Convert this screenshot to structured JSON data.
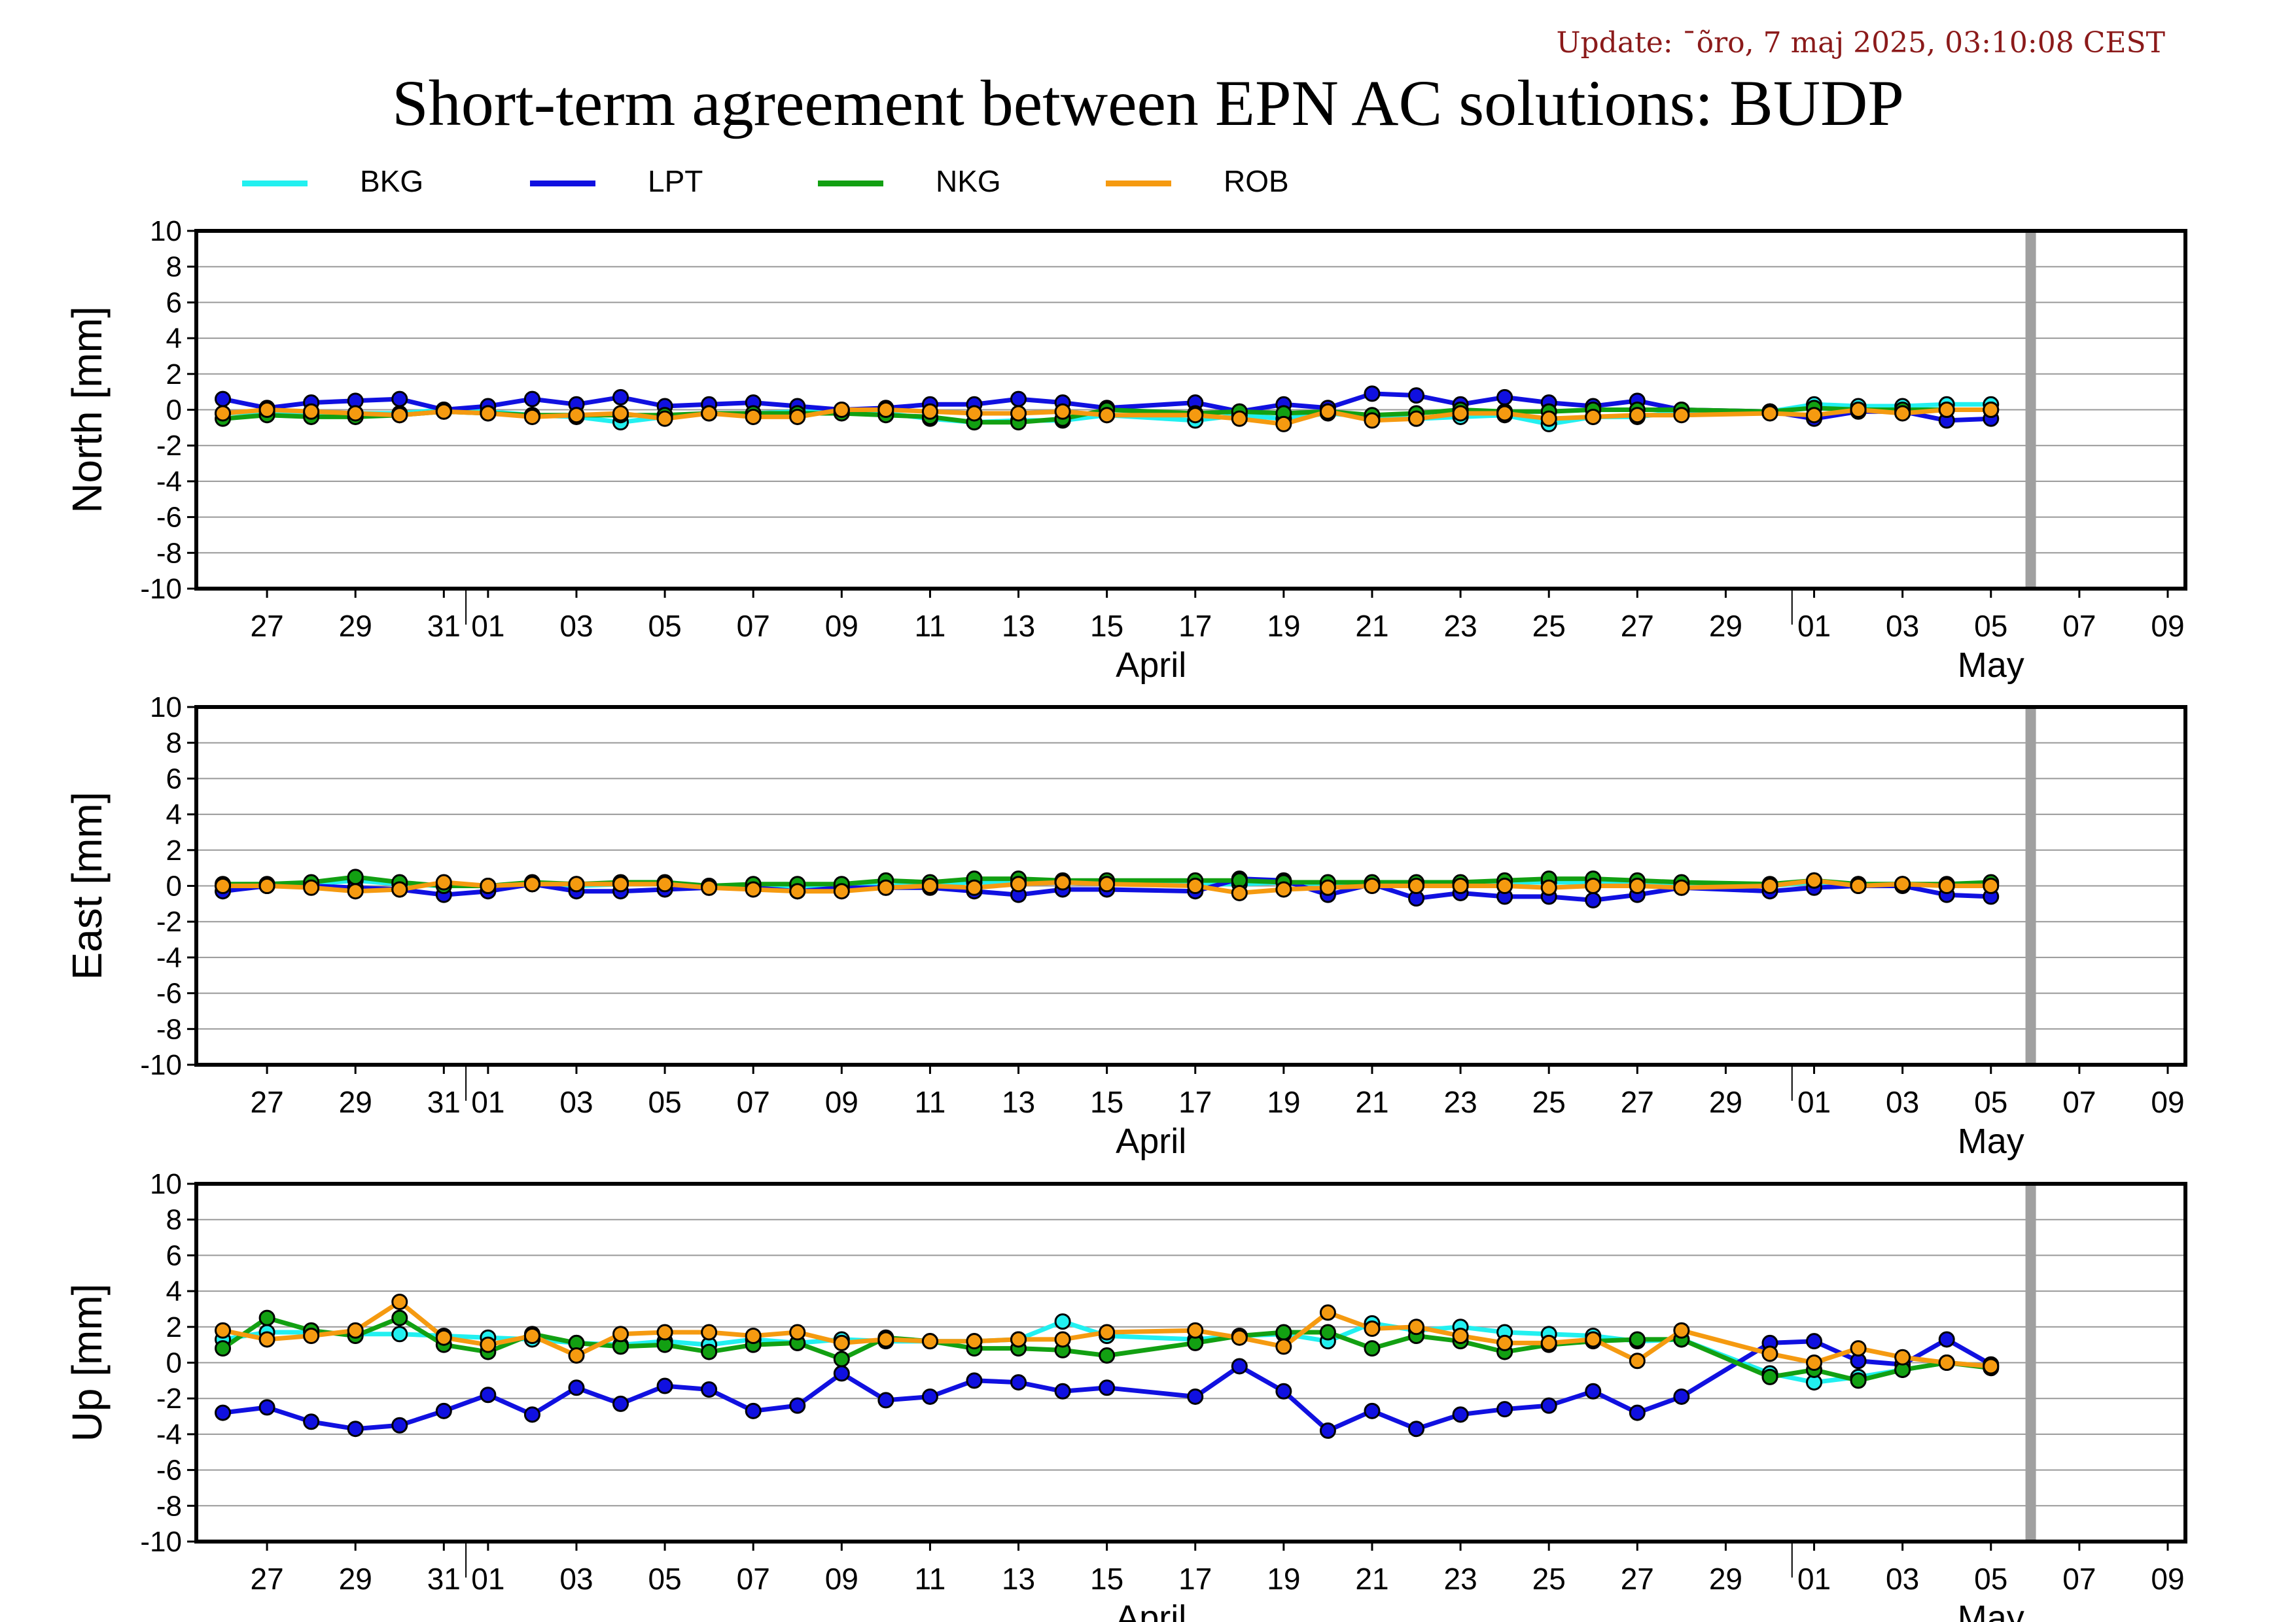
{
  "update_text": "Update: ¯õro, 7 maj 2025, 03:10:08 CEST",
  "title": "Short-term agreement between EPN AC solutions: BUDP",
  "legend": [
    {
      "name": "BKG",
      "color": "#22f0f0"
    },
    {
      "name": "LPT",
      "color": "#1010e0"
    },
    {
      "name": "NKG",
      "color": "#12a012"
    },
    {
      "name": "ROB",
      "color": "#f59a10"
    }
  ],
  "x_axis": {
    "tick_labels": [
      "27",
      "29",
      "31",
      "01",
      "03",
      "05",
      "07",
      "09",
      "11",
      "13",
      "15",
      "17",
      "19",
      "21",
      "23",
      "25",
      "27",
      "29",
      "01",
      "03",
      "05",
      "07",
      "09"
    ],
    "tick_days": [
      1,
      3,
      5,
      6,
      8,
      10,
      12,
      14,
      16,
      18,
      20,
      22,
      24,
      26,
      28,
      30,
      32,
      34,
      36,
      38,
      40,
      42,
      44
    ],
    "month_labels": [
      {
        "text": "April",
        "day": 21
      },
      {
        "text": "May",
        "day": 40
      }
    ],
    "month_separators": [
      5.5,
      35.5
    ],
    "range_days": [
      -0.6,
      44.4
    ],
    "current_day_marker": 40.9
  },
  "chart_data": [
    {
      "type": "line",
      "ylabel": "North [mm]",
      "ylim": [
        -10,
        10
      ],
      "yticks": [
        10,
        8,
        6,
        4,
        2,
        0,
        -2,
        -4,
        -6,
        -8,
        -10
      ],
      "grid": true,
      "series": [
        {
          "name": "BKG",
          "x": [
            0,
            1,
            2,
            3,
            4,
            5,
            6,
            7,
            8,
            9,
            10,
            11,
            12,
            13,
            14,
            15,
            16,
            17,
            18,
            19,
            20,
            22,
            23,
            24,
            25,
            26,
            27,
            28,
            29,
            30,
            31,
            32,
            33,
            35,
            36,
            37,
            38,
            39,
            40
          ],
          "y": [
            -0.2,
            -0.1,
            -0.2,
            -0.2,
            -0.2,
            0.0,
            -0.1,
            -0.3,
            -0.4,
            -0.7,
            -0.4,
            -0.2,
            -0.2,
            -0.1,
            -0.1,
            -0.2,
            -0.5,
            -0.7,
            -0.6,
            -0.6,
            -0.3,
            -0.6,
            -0.3,
            -0.5,
            -0.2,
            -0.4,
            -0.5,
            -0.4,
            -0.3,
            -0.8,
            -0.4,
            -0.4,
            -0.1,
            -0.1,
            0.3,
            0.2,
            0.2,
            0.3,
            0.3
          ]
        },
        {
          "name": "LPT",
          "x": [
            0,
            1,
            2,
            3,
            4,
            5,
            6,
            7,
            8,
            9,
            10,
            11,
            12,
            13,
            14,
            15,
            16,
            17,
            18,
            19,
            20,
            22,
            23,
            24,
            25,
            26,
            27,
            28,
            29,
            30,
            31,
            32,
            33,
            35,
            36,
            37,
            38,
            39,
            40
          ],
          "y": [
            0.6,
            0.1,
            0.4,
            0.5,
            0.6,
            0.0,
            0.2,
            0.6,
            0.3,
            0.7,
            0.2,
            0.3,
            0.4,
            0.2,
            0.0,
            0.1,
            0.3,
            0.3,
            0.6,
            0.4,
            0.1,
            0.4,
            -0.1,
            0.3,
            0.1,
            0.9,
            0.8,
            0.3,
            0.7,
            0.4,
            0.2,
            0.5,
            0.0,
            -0.1,
            -0.5,
            -0.1,
            -0.1,
            -0.6,
            -0.5
          ]
        },
        {
          "name": "NKG",
          "x": [
            0,
            1,
            2,
            3,
            4,
            5,
            6,
            7,
            8,
            9,
            10,
            11,
            12,
            13,
            14,
            15,
            16,
            17,
            18,
            19,
            20,
            22,
            23,
            24,
            25,
            26,
            27,
            28,
            29,
            30,
            31,
            32,
            33,
            35,
            36,
            37,
            38,
            39,
            40
          ],
          "y": [
            -0.5,
            -0.3,
            -0.4,
            -0.4,
            -0.3,
            -0.1,
            -0.2,
            -0.3,
            -0.3,
            -0.3,
            -0.3,
            -0.2,
            -0.2,
            -0.2,
            -0.2,
            -0.3,
            -0.4,
            -0.7,
            -0.7,
            -0.5,
            0.0,
            -0.2,
            -0.1,
            -0.2,
            -0.1,
            -0.3,
            -0.2,
            0.0,
            -0.1,
            -0.1,
            0.0,
            0.0,
            0.0,
            -0.1,
            0.1,
            0.0,
            0.0,
            0.0,
            0.0
          ]
        },
        {
          "name": "ROB",
          "x": [
            0,
            1,
            2,
            3,
            4,
            5,
            6,
            7,
            8,
            9,
            10,
            11,
            12,
            13,
            14,
            15,
            16,
            17,
            18,
            19,
            20,
            22,
            23,
            24,
            25,
            26,
            27,
            28,
            29,
            30,
            31,
            32,
            33,
            35,
            36,
            37,
            38,
            39,
            40
          ],
          "y": [
            -0.2,
            0.0,
            -0.1,
            -0.2,
            -0.3,
            -0.1,
            -0.2,
            -0.4,
            -0.3,
            -0.2,
            -0.5,
            -0.2,
            -0.4,
            -0.4,
            0.0,
            0.0,
            -0.1,
            -0.2,
            -0.2,
            -0.1,
            -0.3,
            -0.3,
            -0.5,
            -0.8,
            -0.1,
            -0.6,
            -0.5,
            -0.2,
            -0.2,
            -0.5,
            -0.4,
            -0.3,
            -0.3,
            -0.2,
            -0.3,
            0.0,
            -0.2,
            0.0,
            0.0
          ]
        }
      ]
    },
    {
      "type": "line",
      "ylabel": "East [mm]",
      "ylim": [
        -10,
        10
      ],
      "yticks": [
        10,
        8,
        6,
        4,
        2,
        0,
        -2,
        -4,
        -6,
        -8,
        -10
      ],
      "grid": true,
      "series": [
        {
          "name": "BKG",
          "x": [
            0,
            1,
            2,
            3,
            4,
            5,
            6,
            7,
            8,
            9,
            10,
            11,
            12,
            13,
            14,
            15,
            16,
            17,
            18,
            19,
            20,
            22,
            23,
            24,
            25,
            26,
            27,
            28,
            29,
            30,
            31,
            32,
            33,
            35,
            36,
            37,
            38,
            39,
            40
          ],
          "y": [
            0.0,
            0.0,
            0.1,
            0.3,
            0.1,
            0.0,
            0.0,
            0.1,
            0.0,
            0.1,
            0.1,
            0.0,
            0.0,
            0.0,
            0.0,
            0.0,
            0.1,
            0.2,
            0.2,
            0.2,
            0.2,
            0.1,
            0.1,
            0.2,
            0.1,
            0.1,
            0.1,
            0.1,
            0.2,
            0.2,
            0.2,
            0.1,
            0.1,
            0.0,
            0.2,
            0.1,
            0.1,
            0.0,
            0.1
          ]
        },
        {
          "name": "LPT",
          "x": [
            0,
            1,
            2,
            3,
            4,
            5,
            6,
            7,
            8,
            9,
            10,
            11,
            12,
            13,
            14,
            15,
            16,
            17,
            18,
            19,
            20,
            22,
            23,
            24,
            25,
            26,
            27,
            28,
            29,
            30,
            31,
            32,
            33,
            35,
            36,
            37,
            38,
            39,
            40
          ],
          "y": [
            -0.3,
            0.0,
            0.0,
            -0.1,
            -0.2,
            -0.5,
            -0.3,
            0.1,
            -0.3,
            -0.3,
            -0.2,
            -0.1,
            -0.1,
            -0.3,
            -0.1,
            -0.1,
            -0.1,
            -0.3,
            -0.5,
            -0.2,
            -0.2,
            -0.3,
            0.4,
            0.3,
            -0.5,
            0.1,
            -0.7,
            -0.4,
            -0.6,
            -0.6,
            -0.8,
            -0.5,
            -0.1,
            -0.3,
            -0.1,
            0.0,
            0.0,
            -0.5,
            -0.6
          ]
        },
        {
          "name": "NKG",
          "x": [
            0,
            1,
            2,
            3,
            4,
            5,
            6,
            7,
            8,
            9,
            10,
            11,
            12,
            13,
            14,
            15,
            16,
            17,
            18,
            19,
            20,
            22,
            23,
            24,
            25,
            26,
            27,
            28,
            29,
            30,
            31,
            32,
            33,
            35,
            36,
            37,
            38,
            39,
            40
          ],
          "y": [
            0.1,
            0.1,
            0.2,
            0.5,
            0.2,
            0.0,
            0.0,
            0.2,
            0.1,
            0.2,
            0.2,
            0.0,
            0.1,
            0.1,
            0.1,
            0.3,
            0.2,
            0.4,
            0.4,
            0.3,
            0.3,
            0.3,
            0.3,
            0.2,
            0.2,
            0.2,
            0.2,
            0.2,
            0.3,
            0.4,
            0.4,
            0.3,
            0.2,
            0.1,
            0.3,
            0.1,
            0.1,
            0.1,
            0.2
          ]
        },
        {
          "name": "ROB",
          "x": [
            0,
            1,
            2,
            3,
            4,
            5,
            6,
            7,
            8,
            9,
            10,
            11,
            12,
            13,
            14,
            15,
            16,
            17,
            18,
            19,
            20,
            22,
            23,
            24,
            25,
            26,
            27,
            28,
            29,
            30,
            31,
            32,
            33,
            35,
            36,
            37,
            38,
            39,
            40
          ],
          "y": [
            0.0,
            0.0,
            -0.1,
            -0.3,
            -0.2,
            0.2,
            0.0,
            0.1,
            0.1,
            0.1,
            0.1,
            -0.1,
            -0.2,
            -0.3,
            -0.3,
            -0.1,
            0.0,
            -0.1,
            0.1,
            0.2,
            0.1,
            0.0,
            -0.4,
            -0.2,
            -0.1,
            0.0,
            0.0,
            0.0,
            0.0,
            -0.1,
            0.0,
            0.0,
            -0.1,
            0.0,
            0.3,
            0.0,
            0.1,
            0.0,
            0.0
          ]
        }
      ]
    },
    {
      "type": "line",
      "ylabel": "Up [mm]",
      "ylim": [
        -10,
        10
      ],
      "yticks": [
        10,
        8,
        6,
        4,
        2,
        0,
        -2,
        -4,
        -6,
        -8,
        -10
      ],
      "grid": true,
      "series": [
        {
          "name": "BKG",
          "x": [
            0,
            1,
            2,
            3,
            4,
            5,
            6,
            7,
            8,
            9,
            10,
            11,
            12,
            13,
            14,
            15,
            16,
            17,
            18,
            19,
            20,
            22,
            23,
            24,
            25,
            26,
            27,
            28,
            29,
            30,
            31,
            32,
            33,
            35,
            36,
            37,
            38,
            39,
            40
          ],
          "y": [
            1.3,
            1.7,
            1.7,
            1.6,
            1.6,
            1.5,
            1.4,
            1.3,
            1.1,
            1.0,
            1.2,
            1.0,
            1.3,
            1.1,
            1.3,
            1.2,
            1.2,
            1.2,
            1.3,
            2.3,
            1.5,
            1.3,
            1.5,
            1.6,
            1.2,
            2.2,
            1.8,
            2.0,
            1.7,
            1.6,
            1.5,
            1.2,
            1.3,
            -0.6,
            -1.1,
            -0.8,
            -0.4,
            0.0,
            -0.2
          ]
        },
        {
          "name": "LPT",
          "x": [
            0,
            1,
            2,
            3,
            4,
            5,
            6,
            7,
            8,
            9,
            10,
            11,
            12,
            13,
            14,
            15,
            16,
            17,
            18,
            19,
            20,
            22,
            23,
            24,
            25,
            26,
            27,
            28,
            29,
            30,
            31,
            32,
            33,
            35,
            36,
            37,
            38,
            39,
            40
          ],
          "y": [
            -2.8,
            -2.5,
            -3.3,
            -3.7,
            -3.5,
            -2.7,
            -1.8,
            -2.9,
            -1.4,
            -2.3,
            -1.3,
            -1.5,
            -2.7,
            -2.4,
            -0.6,
            -2.1,
            -1.9,
            -1.0,
            -1.1,
            -1.6,
            -1.4,
            -1.9,
            -0.2,
            -1.6,
            -3.8,
            -2.7,
            -3.7,
            -2.9,
            -2.6,
            -2.4,
            -1.6,
            -2.8,
            -1.9,
            1.1,
            1.2,
            0.1,
            -0.1,
            1.3,
            -0.1
          ]
        },
        {
          "name": "NKG",
          "x": [
            0,
            1,
            2,
            3,
            4,
            5,
            6,
            7,
            8,
            9,
            10,
            11,
            12,
            13,
            14,
            15,
            16,
            17,
            18,
            19,
            20,
            22,
            23,
            24,
            25,
            26,
            27,
            28,
            29,
            30,
            31,
            32,
            33,
            35,
            36,
            37,
            38,
            39,
            40
          ],
          "y": [
            0.8,
            2.5,
            1.8,
            1.5,
            2.5,
            1.0,
            0.6,
            1.6,
            1.1,
            0.9,
            1.0,
            0.6,
            1.0,
            1.1,
            0.2,
            1.4,
            1.2,
            0.8,
            0.8,
            0.7,
            0.4,
            1.1,
            1.5,
            1.7,
            1.7,
            0.8,
            1.5,
            1.2,
            0.6,
            1.0,
            1.2,
            1.3,
            1.3,
            -0.8,
            -0.4,
            -1.0,
            -0.4,
            0.0,
            -0.3
          ]
        },
        {
          "name": "ROB",
          "x": [
            0,
            1,
            2,
            3,
            4,
            5,
            6,
            7,
            8,
            9,
            10,
            11,
            12,
            13,
            14,
            15,
            16,
            17,
            18,
            19,
            20,
            22,
            23,
            24,
            25,
            26,
            27,
            28,
            29,
            30,
            31,
            32,
            33,
            35,
            36,
            37,
            38,
            39,
            40
          ],
          "y": [
            1.8,
            1.3,
            1.5,
            1.8,
            3.4,
            1.4,
            1.0,
            1.5,
            0.4,
            1.6,
            1.7,
            1.7,
            1.5,
            1.7,
            1.1,
            1.3,
            1.2,
            1.2,
            1.3,
            1.3,
            1.7,
            1.8,
            1.4,
            0.9,
            2.8,
            1.9,
            2.0,
            1.5,
            1.1,
            1.1,
            1.3,
            0.1,
            1.8,
            0.5,
            0.0,
            0.8,
            0.3,
            0.0,
            -0.2
          ]
        }
      ]
    }
  ]
}
